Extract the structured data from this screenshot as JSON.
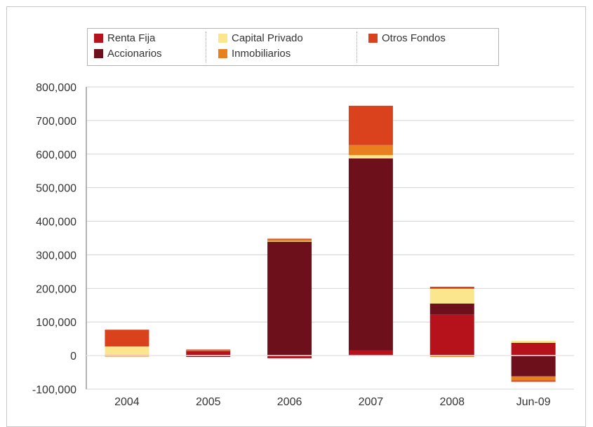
{
  "chart_data": {
    "type": "bar",
    "stacked": true,
    "categories": [
      "2004",
      "2005",
      "2006",
      "2007",
      "2008",
      "Jun-09"
    ],
    "ylim": [
      -100000,
      800000
    ],
    "yticks": [
      -100000,
      0,
      100000,
      200000,
      300000,
      400000,
      500000,
      600000,
      700000,
      800000
    ],
    "ytick_labels": [
      "-100,000",
      "0",
      "100,000",
      "200,000",
      "300,000",
      "400,000",
      "500,000",
      "600,000",
      "700,000",
      "800,000"
    ],
    "grid": true,
    "legend_position": "top",
    "series": [
      {
        "name": "Renta Fija",
        "color": "#b5121b",
        "values": [
          2000,
          15000,
          -8000,
          15000,
          122000,
          38000
        ]
      },
      {
        "name": "Accionarios",
        "color": "#6e0f1c",
        "values": [
          -1000,
          -4000,
          340000,
          572000,
          33000,
          -62000
        ]
      },
      {
        "name": "Capital Privado",
        "color": "#fbe58d",
        "values": [
          25000,
          1000,
          1000,
          10000,
          44000,
          6000
        ]
      },
      {
        "name": "Inmobiliarios",
        "color": "#e8801f",
        "values": [
          -2000,
          1000,
          4000,
          30000,
          -4000,
          -12000
        ]
      },
      {
        "name": "Otros Fondos",
        "color": "#d9421d",
        "values": [
          50000,
          1000,
          3000,
          117000,
          6000,
          -4000
        ]
      }
    ]
  }
}
